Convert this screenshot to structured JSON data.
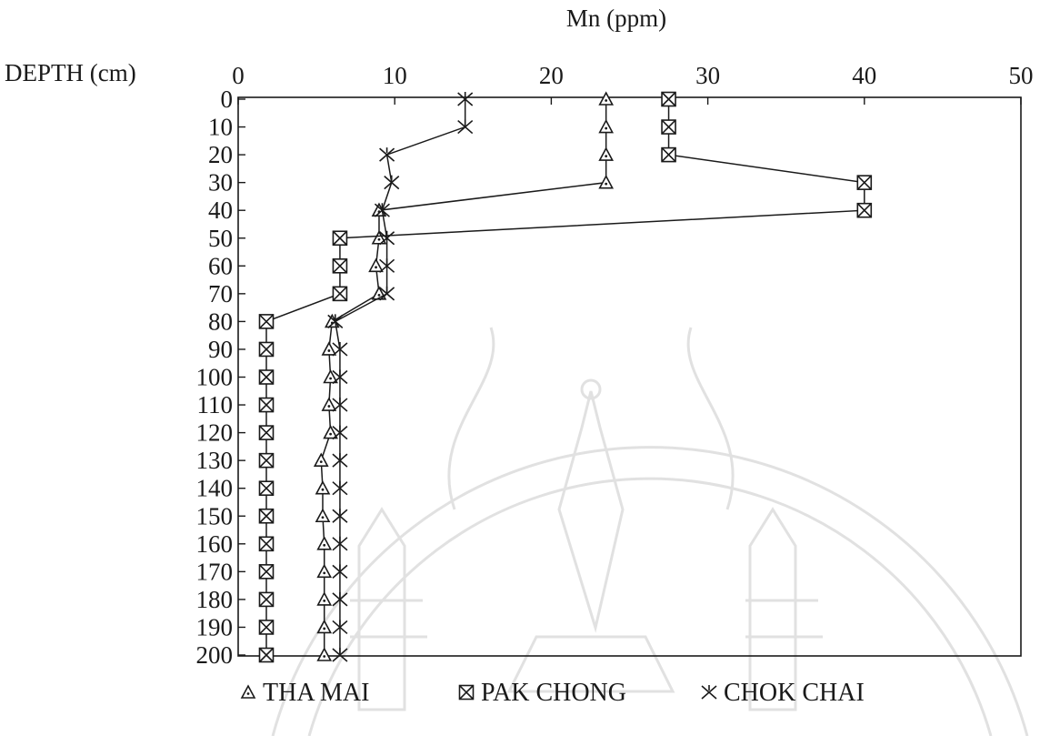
{
  "chart_data": {
    "type": "line",
    "title": "Mn (ppm)",
    "ylabel": "DEPTH (cm)",
    "xlim": [
      0,
      50
    ],
    "x_ticks": [
      "0",
      "10",
      "20",
      "30",
      "40",
      "50"
    ],
    "ylim": [
      0,
      200
    ],
    "y_inverted": true,
    "y_ticks": [
      "0",
      "10",
      "20",
      "30",
      "40",
      "50",
      "60",
      "70",
      "80",
      "90",
      "100",
      "110",
      "120",
      "130",
      "140",
      "150",
      "160",
      "170",
      "180",
      "190",
      "200"
    ],
    "depths": [
      0,
      10,
      20,
      30,
      40,
      50,
      60,
      70,
      80,
      90,
      100,
      110,
      120,
      130,
      140,
      150,
      160,
      170,
      180,
      190,
      200
    ],
    "legend_position": "bottom",
    "grid": false,
    "series": [
      {
        "name": "THA MAI",
        "marker": "triangle",
        "values": [
          23.5,
          23.5,
          23.5,
          23.5,
          9,
          9,
          8.8,
          9,
          6,
          5.8,
          5.9,
          5.8,
          5.9,
          5.3,
          5.4,
          5.4,
          5.5,
          5.5,
          5.5,
          5.5,
          5.5
        ]
      },
      {
        "name": "PAK CHONG",
        "marker": "boxed-x",
        "values": [
          27.5,
          27.5,
          27.5,
          40,
          40,
          6.5,
          6.5,
          6.5,
          1.8,
          1.8,
          1.8,
          1.8,
          1.8,
          1.8,
          1.8,
          1.8,
          1.8,
          1.8,
          1.8,
          1.8,
          1.8
        ]
      },
      {
        "name": "CHOK CHAI",
        "marker": "x",
        "values": [
          14.5,
          14.5,
          9.5,
          9.8,
          9.2,
          9.5,
          9.5,
          9.5,
          6.2,
          6.5,
          6.5,
          6.5,
          6.5,
          6.5,
          6.5,
          6.5,
          6.5,
          6.5,
          6.5,
          6.5,
          6.5
        ]
      }
    ]
  }
}
